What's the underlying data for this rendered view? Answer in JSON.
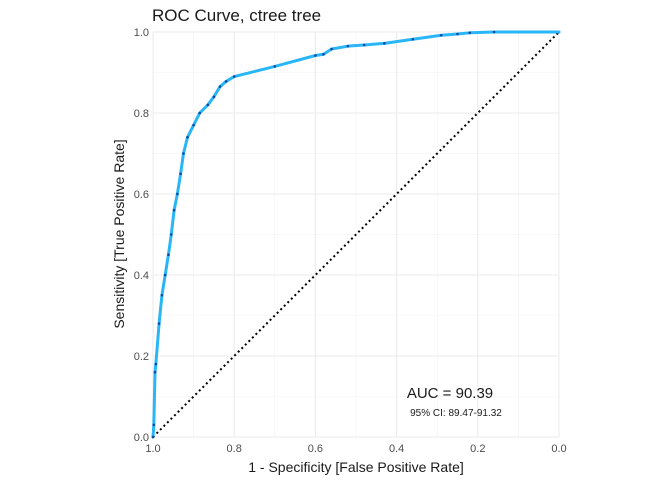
{
  "chart_data": {
    "type": "line",
    "title": "ROC Curve, ctree tree",
    "xlabel": "1 - Specificity [False Positive Rate]",
    "ylabel": "Sensitivity [True Positive Rate]",
    "x_reversed": true,
    "xlim": [
      1.0,
      0.0
    ],
    "ylim": [
      0.0,
      1.0
    ],
    "x_ticks": [
      "1.0",
      "0.8",
      "0.6",
      "0.4",
      "0.2",
      "0.0"
    ],
    "y_ticks": [
      "0.0",
      "0.2",
      "0.4",
      "0.6",
      "0.8",
      "1.0"
    ],
    "grid": true,
    "series": [
      {
        "color": "#29b6f6",
        "marker_color": "#0d47a1",
        "points": [
          {
            "specificity": 1.0,
            "sensitivity": 0.0
          },
          {
            "specificity": 0.998,
            "sensitivity": 0.03
          },
          {
            "specificity": 0.995,
            "sensitivity": 0.16
          },
          {
            "specificity": 0.993,
            "sensitivity": 0.18
          },
          {
            "specificity": 0.985,
            "sensitivity": 0.28
          },
          {
            "specificity": 0.978,
            "sensitivity": 0.35
          },
          {
            "specificity": 0.97,
            "sensitivity": 0.4
          },
          {
            "specificity": 0.962,
            "sensitivity": 0.45
          },
          {
            "specificity": 0.955,
            "sensitivity": 0.5
          },
          {
            "specificity": 0.948,
            "sensitivity": 0.56
          },
          {
            "specificity": 0.94,
            "sensitivity": 0.6
          },
          {
            "specificity": 0.932,
            "sensitivity": 0.65
          },
          {
            "specificity": 0.925,
            "sensitivity": 0.7
          },
          {
            "specificity": 0.915,
            "sensitivity": 0.74
          },
          {
            "specificity": 0.9,
            "sensitivity": 0.77
          },
          {
            "specificity": 0.885,
            "sensitivity": 0.8
          },
          {
            "specificity": 0.865,
            "sensitivity": 0.82
          },
          {
            "specificity": 0.85,
            "sensitivity": 0.84
          },
          {
            "specificity": 0.835,
            "sensitivity": 0.865
          },
          {
            "specificity": 0.82,
            "sensitivity": 0.878
          },
          {
            "specificity": 0.8,
            "sensitivity": 0.89
          },
          {
            "specificity": 0.7,
            "sensitivity": 0.915
          },
          {
            "specificity": 0.6,
            "sensitivity": 0.942
          },
          {
            "specificity": 0.58,
            "sensitivity": 0.945
          },
          {
            "specificity": 0.56,
            "sensitivity": 0.958
          },
          {
            "specificity": 0.52,
            "sensitivity": 0.965
          },
          {
            "specificity": 0.48,
            "sensitivity": 0.968
          },
          {
            "specificity": 0.43,
            "sensitivity": 0.972
          },
          {
            "specificity": 0.36,
            "sensitivity": 0.982
          },
          {
            "specificity": 0.29,
            "sensitivity": 0.992
          },
          {
            "specificity": 0.25,
            "sensitivity": 0.995
          },
          {
            "specificity": 0.22,
            "sensitivity": 0.998
          },
          {
            "specificity": 0.16,
            "sensitivity": 1.0
          },
          {
            "specificity": 0.0,
            "sensitivity": 1.0
          }
        ]
      }
    ],
    "reference_line": {
      "from": [
        1.0,
        0.0
      ],
      "to": [
        0.0,
        1.0
      ],
      "style": "dotted",
      "color": "#000000"
    },
    "annotations": {
      "auc": "AUC = 90.39",
      "ci": "95% CI: 89.47-91.32"
    }
  }
}
